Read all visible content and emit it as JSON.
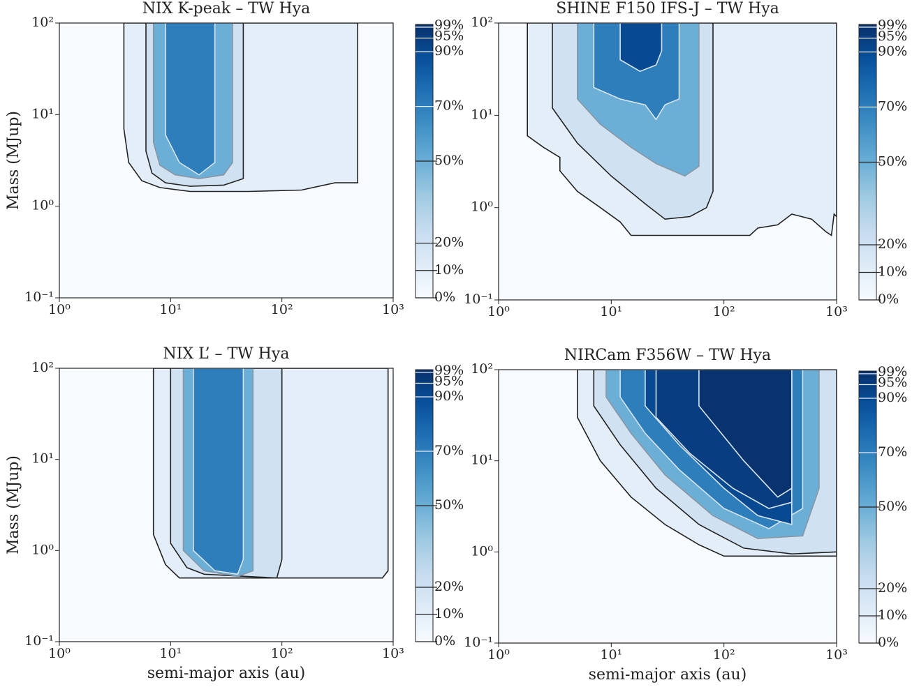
{
  "colormap": [
    "#f7fbff",
    "#deebf7",
    "#c6dbef",
    "#9ecae1",
    "#6baed6",
    "#4292c6",
    "#2171b5",
    "#08519c",
    "#08306b"
  ],
  "chart_data": [
    {
      "type": "contour",
      "title": "NIX K-peak – TW Hya",
      "ylabel": "Mass (MJup)",
      "xlim": [
        1,
        1000
      ],
      "ylim": [
        0.1,
        100
      ],
      "log_x": true,
      "log_y": true,
      "xticks": [
        {
          "value": 1,
          "label": "10⁰"
        },
        {
          "value": 10,
          "label": "10¹"
        },
        {
          "value": 100,
          "label": "10²"
        },
        {
          "value": 1000,
          "label": "10³"
        }
      ],
      "yticks": [
        {
          "value": 0.1,
          "label": "10⁻¹"
        },
        {
          "value": 1,
          "label": "10⁰"
        },
        {
          "value": 10,
          "label": "10¹"
        },
        {
          "value": 100,
          "label": "10²"
        }
      ],
      "colorbar": {
        "lim": [
          0,
          100
        ],
        "ticks": [
          {
            "value": 0,
            "label": "0%"
          },
          {
            "value": 10,
            "label": "10%"
          },
          {
            "value": 20,
            "label": "20%"
          },
          {
            "value": 50,
            "label": "50%"
          },
          {
            "value": 70,
            "label": "70%"
          },
          {
            "value": 90,
            "label": "90%"
          },
          {
            "value": 95,
            "label": "95%"
          },
          {
            "value": 99,
            "label": "99%"
          }
        ]
      },
      "contours": [
        {
          "level": 10,
          "x": [
            3.8,
            3.8,
            4.2,
            5.5,
            8,
            15,
            50,
            150,
            300,
            480,
            480
          ],
          "y": [
            100,
            7,
            3,
            1.9,
            1.6,
            1.45,
            1.45,
            1.5,
            1.8,
            1.8,
            100
          ]
        },
        {
          "level": 20,
          "x": [
            6,
            6,
            6.8,
            9,
            15,
            30,
            45,
            45
          ],
          "y": [
            100,
            4,
            2.3,
            1.8,
            1.65,
            1.7,
            2,
            100
          ]
        },
        {
          "level": 50,
          "x": [
            7,
            7,
            8,
            11,
            18,
            30,
            36,
            36
          ],
          "y": [
            100,
            5,
            2.8,
            2.2,
            2,
            2.2,
            3,
            100
          ]
        },
        {
          "level": 70,
          "x": [
            9,
            9,
            12,
            18,
            25,
            25
          ],
          "y": [
            100,
            6,
            3,
            2.2,
            3,
            100
          ]
        }
      ]
    },
    {
      "type": "contour",
      "title": "SHINE F150 IFS-J – TW Hya",
      "xlim": [
        1,
        1000
      ],
      "ylim": [
        0.1,
        100
      ],
      "log_x": true,
      "log_y": true,
      "xticks": [
        {
          "value": 1,
          "label": "10⁰"
        },
        {
          "value": 10,
          "label": "10¹"
        },
        {
          "value": 100,
          "label": "10²"
        },
        {
          "value": 1000,
          "label": "10³"
        }
      ],
      "yticks": [
        {
          "value": 0.1,
          "label": "10⁻¹"
        },
        {
          "value": 1,
          "label": "10⁰"
        },
        {
          "value": 10,
          "label": "10¹"
        },
        {
          "value": 100,
          "label": "10²"
        }
      ],
      "colorbar": {
        "lim": [
          0,
          100
        ],
        "ticks": [
          {
            "value": 0,
            "label": "0%"
          },
          {
            "value": 10,
            "label": "10%"
          },
          {
            "value": 20,
            "label": "20%"
          },
          {
            "value": 50,
            "label": "50%"
          },
          {
            "value": 70,
            "label": "70%"
          },
          {
            "value": 90,
            "label": "90%"
          },
          {
            "value": 95,
            "label": "95%"
          },
          {
            "value": 99,
            "label": "99%"
          }
        ]
      },
      "contours": [
        {
          "level": 10,
          "x": [
            1.8,
            1.8,
            2.5,
            3.5,
            3.5,
            5,
            8,
            12,
            15,
            170,
            200,
            300,
            400,
            600,
            800,
            900,
            950,
            1000,
            1000
          ],
          "y": [
            100,
            6,
            4.5,
            3.5,
            2.5,
            1.5,
            1,
            0.7,
            0.5,
            0.5,
            0.6,
            0.65,
            0.85,
            0.75,
            0.55,
            0.5,
            0.85,
            0.8,
            100
          ]
        },
        {
          "level": 20,
          "x": [
            3,
            3,
            5,
            10,
            20,
            30,
            50,
            70,
            80,
            80
          ],
          "y": [
            100,
            12,
            5,
            2.2,
            1.1,
            0.75,
            0.8,
            1,
            1.5,
            100
          ]
        },
        {
          "level": 50,
          "x": [
            5,
            5,
            8,
            15,
            25,
            45,
            60,
            60
          ],
          "y": [
            100,
            15,
            8,
            4.5,
            3,
            2.2,
            2.8,
            100
          ]
        },
        {
          "level": 70,
          "x": [
            7,
            7,
            12,
            20,
            25,
            30,
            40,
            40
          ],
          "y": [
            100,
            20,
            15,
            13,
            9,
            13,
            15,
            100
          ]
        },
        {
          "level": 90,
          "x": [
            12,
            12,
            18,
            25,
            28,
            28
          ],
          "y": [
            100,
            40,
            30,
            35,
            50,
            100
          ]
        }
      ]
    },
    {
      "type": "contour",
      "title": "NIX L’ – TW Hya",
      "xlabel": "semi-major axis (au)",
      "ylabel": "Mass (MJup)",
      "xlim": [
        1,
        1000
      ],
      "ylim": [
        0.1,
        100
      ],
      "log_x": true,
      "log_y": true,
      "xticks": [
        {
          "value": 1,
          "label": "10⁰"
        },
        {
          "value": 10,
          "label": "10¹"
        },
        {
          "value": 100,
          "label": "10²"
        },
        {
          "value": 1000,
          "label": "10³"
        }
      ],
      "yticks": [
        {
          "value": 0.1,
          "label": "10⁻¹"
        },
        {
          "value": 1,
          "label": "10⁰"
        },
        {
          "value": 10,
          "label": "10¹"
        },
        {
          "value": 100,
          "label": "10²"
        }
      ],
      "colorbar": {
        "lim": [
          0,
          100
        ],
        "ticks": [
          {
            "value": 0,
            "label": "0%"
          },
          {
            "value": 10,
            "label": "10%"
          },
          {
            "value": 20,
            "label": "20%"
          },
          {
            "value": 50,
            "label": "50%"
          },
          {
            "value": 70,
            "label": "70%"
          },
          {
            "value": 90,
            "label": "90%"
          },
          {
            "value": 95,
            "label": "95%"
          },
          {
            "value": 99,
            "label": "99%"
          }
        ]
      },
      "contours": [
        {
          "level": 10,
          "x": [
            7,
            7,
            9,
            12,
            800,
            900,
            900
          ],
          "y": [
            100,
            1.5,
            0.7,
            0.5,
            0.5,
            0.6,
            100
          ]
        },
        {
          "level": 20,
          "x": [
            10,
            10,
            14,
            20,
            90,
            100,
            100
          ],
          "y": [
            100,
            1.2,
            0.65,
            0.55,
            0.5,
            0.8,
            100
          ]
        },
        {
          "level": 50,
          "x": [
            13,
            13,
            20,
            40,
            55,
            55
          ],
          "y": [
            100,
            1,
            0.6,
            0.52,
            0.6,
            100
          ]
        },
        {
          "level": 70,
          "x": [
            16,
            16,
            25,
            40,
            45,
            45
          ],
          "y": [
            100,
            1,
            0.6,
            0.55,
            0.8,
            100
          ]
        }
      ]
    },
    {
      "type": "contour",
      "title": "NIRCam F356W – TW Hya",
      "xlabel": "semi-major axis (au)",
      "xlim": [
        1,
        1000
      ],
      "ylim": [
        0.1,
        100
      ],
      "log_x": true,
      "log_y": true,
      "xticks": [
        {
          "value": 1,
          "label": "10⁰"
        },
        {
          "value": 10,
          "label": "10¹"
        },
        {
          "value": 100,
          "label": "10²"
        },
        {
          "value": 1000,
          "label": "10³"
        }
      ],
      "yticks": [
        {
          "value": 0.1,
          "label": "10⁻¹"
        },
        {
          "value": 1,
          "label": "10⁰"
        },
        {
          "value": 10,
          "label": "10¹"
        },
        {
          "value": 100,
          "label": "10²"
        }
      ],
      "colorbar": {
        "lim": [
          0,
          100
        ],
        "ticks": [
          {
            "value": 0,
            "label": "0%"
          },
          {
            "value": 10,
            "label": "10%"
          },
          {
            "value": 20,
            "label": "20%"
          },
          {
            "value": 50,
            "label": "50%"
          },
          {
            "value": 70,
            "label": "70%"
          },
          {
            "value": 90,
            "label": "90%"
          },
          {
            "value": 95,
            "label": "95%"
          },
          {
            "value": 99,
            "label": "99%"
          }
        ]
      },
      "contours": [
        {
          "level": 10,
          "x": [
            5,
            5,
            8,
            15,
            30,
            60,
            100,
            1000,
            1000
          ],
          "y": [
            100,
            30,
            10,
            4,
            2,
            1.2,
            0.9,
            0.9,
            100
          ]
        },
        {
          "level": 20,
          "x": [
            7,
            7,
            12,
            25,
            60,
            150,
            400,
            1000,
            1000
          ],
          "y": [
            100,
            40,
            15,
            5,
            2,
            1.1,
            0.95,
            1,
            100
          ]
        },
        {
          "level": 50,
          "x": [
            9,
            9,
            15,
            30,
            80,
            200,
            500,
            700,
            700
          ],
          "y": [
            100,
            50,
            20,
            7,
            2.5,
            1.4,
            1.5,
            5,
            100
          ]
        },
        {
          "level": 70,
          "x": [
            12,
            12,
            20,
            40,
            100,
            250,
            500,
            500
          ],
          "y": [
            100,
            50,
            20,
            8,
            3,
            1.8,
            3,
            100
          ]
        },
        {
          "level": 90,
          "x": [
            20,
            20,
            40,
            100,
            200,
            400,
            400
          ],
          "y": [
            100,
            40,
            15,
            5,
            2.5,
            2,
            100
          ]
        },
        {
          "level": 95,
          "x": [
            25,
            25,
            50,
            120,
            250,
            400,
            400
          ],
          "y": [
            100,
            30,
            12,
            5,
            3,
            3.5,
            100
          ]
        },
        {
          "level": 99,
          "x": [
            60,
            60,
            150,
            300,
            400,
            400
          ],
          "y": [
            100,
            40,
            10,
            4,
            5,
            100
          ]
        }
      ]
    }
  ]
}
